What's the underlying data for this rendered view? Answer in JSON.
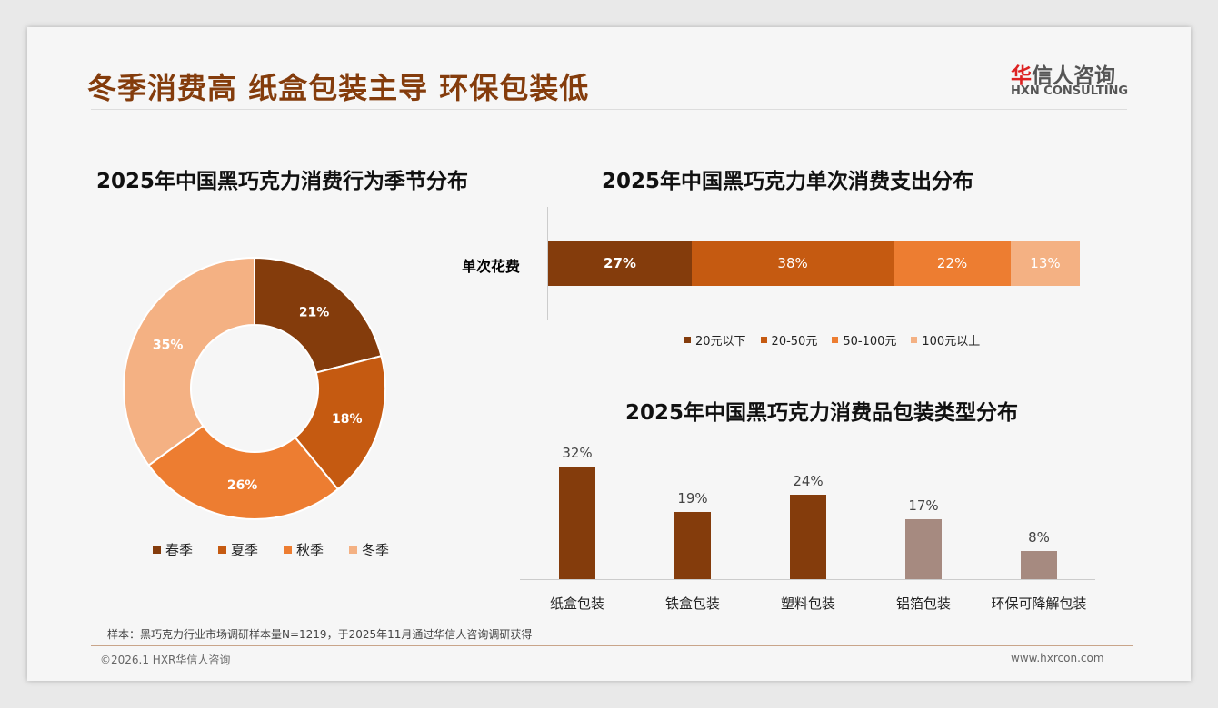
{
  "header": {
    "title": "冬季消费高 纸盒包装主导 环保包装低",
    "logo_cn_red": "华",
    "logo_cn": "信人咨询",
    "logo_en": "HXN CONSULTING"
  },
  "chart_data": [
    {
      "type": "pie",
      "title": "2025年中国黑巧克力消费行为季节分布",
      "categories": [
        "春季",
        "夏季",
        "秋季",
        "冬季"
      ],
      "values": [
        21,
        18,
        26,
        35
      ],
      "labels": [
        "21%",
        "18%",
        "26%",
        "35%"
      ],
      "colors": [
        "#843C0C",
        "#C55A11",
        "#ED7D31",
        "#F4B183"
      ],
      "legend": "bottom"
    },
    {
      "type": "bar",
      "orientation": "horizontal-stacked",
      "title": "2025年中国黑巧克力单次消费支出分布",
      "category": "单次花费",
      "series": [
        {
          "name": "20元以下",
          "value": 27,
          "label": "27%"
        },
        {
          "name": "20-50元",
          "value": 38,
          "label": "38%"
        },
        {
          "name": "50-100元",
          "value": 22,
          "label": "22%"
        },
        {
          "name": "100元以上",
          "value": 13,
          "label": "13%"
        }
      ],
      "colors": [
        "#843C0C",
        "#C55A11",
        "#ED7D31",
        "#F4B183"
      ],
      "legend": "bottom"
    },
    {
      "type": "bar",
      "title": "2025年中国黑巧克力消费品包装类型分布",
      "categories": [
        "纸盒包装",
        "铁盒包装",
        "塑料包装",
        "铝箔包装",
        "环保可降解包装"
      ],
      "values": [
        32,
        19,
        24,
        17,
        8
      ],
      "labels": [
        "32%",
        "19%",
        "24%",
        "17%",
        "8%"
      ],
      "colors": [
        "#843C0C",
        "#843C0C",
        "#843C0C",
        "#A68A80",
        "#A68A80"
      ]
    }
  ],
  "footer": {
    "note": "样本：黑巧克力行业市场调研样本量N=1219，于2025年11月通过华信人咨询调研获得",
    "copyright": "©2026.1 HXR华信人咨询",
    "website": "www.hxrcon.com"
  }
}
